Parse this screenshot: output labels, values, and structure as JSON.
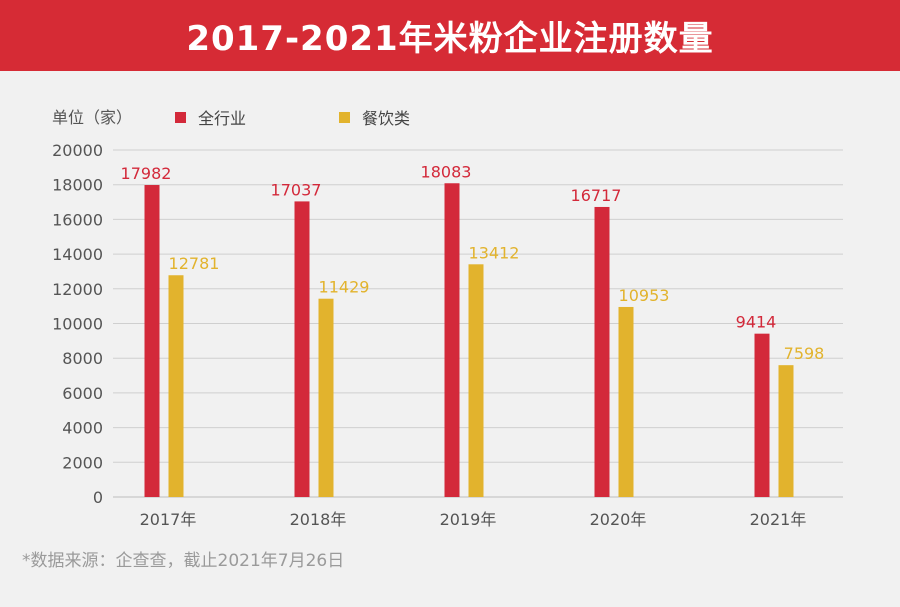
{
  "header": {
    "title": "2017-2021年米粉企业注册数量"
  },
  "chart_data": {
    "type": "bar",
    "unit_label": "单位（家）",
    "categories": [
      "2017年",
      "2018年",
      "2019年",
      "2020年",
      "2021年"
    ],
    "series": [
      {
        "name": "全行业",
        "color": "#d3293a",
        "values": [
          17982,
          17037,
          18083,
          16717,
          9414
        ]
      },
      {
        "name": "餐饮类",
        "color": "#e2b32d",
        "values": [
          12781,
          11429,
          13412,
          10953,
          7598
        ]
      }
    ],
    "ylim": [
      0,
      20000
    ],
    "yticks": [
      0,
      2000,
      4000,
      6000,
      8000,
      10000,
      12000,
      14000,
      16000,
      18000,
      20000
    ],
    "grid": true,
    "legend_position": "top-left"
  },
  "footer": {
    "source": "*数据来源：企查查，截止2021年7月26日"
  }
}
